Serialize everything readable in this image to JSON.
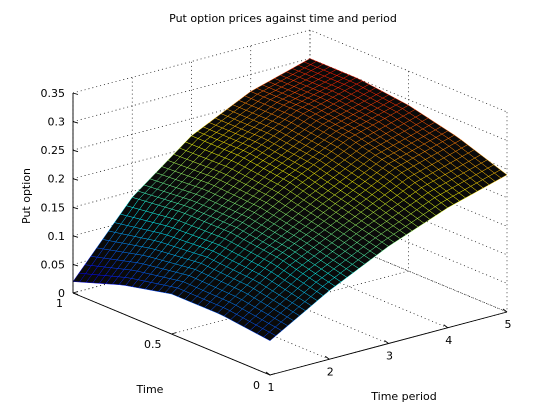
{
  "chart_data": {
    "type": "surface",
    "title": "Put option prices against time and period",
    "xlabel": "Time period",
    "ylabel": "Time",
    "zlabel": "Put option",
    "x_ticks": [
      "1",
      "2",
      "3",
      "4",
      "5"
    ],
    "y_ticks": [
      "0",
      "0.5",
      "1"
    ],
    "z_ticks": [
      "0",
      "0.05",
      "0.1",
      "0.15",
      "0.2",
      "0.25",
      "0.3",
      "0.35"
    ],
    "xlim": [
      1,
      5
    ],
    "ylim": [
      0,
      1
    ],
    "zlim": [
      0,
      0.35
    ],
    "grid": true,
    "colormap": "jet",
    "x": [
      1,
      2,
      3,
      4,
      5
    ],
    "y": [
      0,
      0.25,
      0.5,
      0.75,
      1
    ],
    "z": [
      [
        0.06,
        0.12,
        0.17,
        0.21,
        0.24
      ],
      [
        0.07,
        0.14,
        0.19,
        0.24,
        0.27
      ],
      [
        0.07,
        0.15,
        0.21,
        0.26,
        0.29
      ],
      [
        0.05,
        0.15,
        0.22,
        0.27,
        0.3
      ],
      [
        0.02,
        0.14,
        0.22,
        0.27,
        0.3
      ]
    ]
  }
}
